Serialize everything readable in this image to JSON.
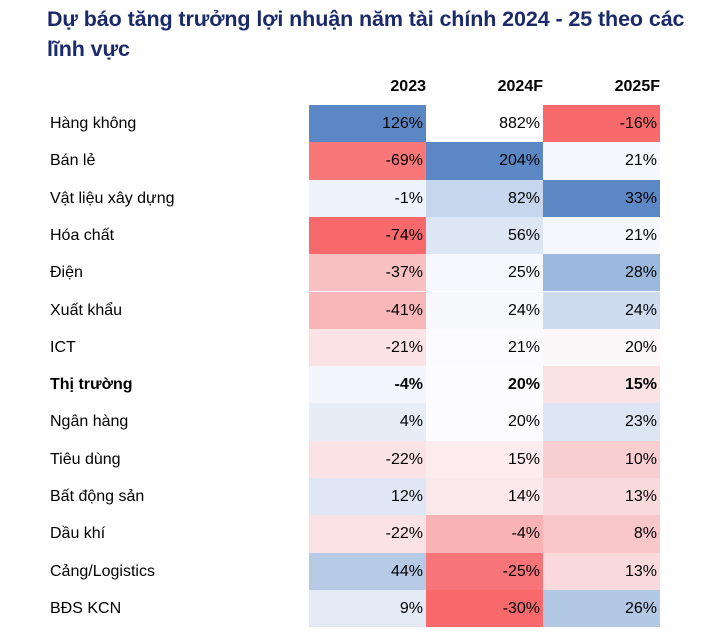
{
  "title": "Dự báo tăng trưởng lợi nhuận năm tài chính 2024 - 25 theo các lĩnh vực",
  "columns": [
    "2023",
    "2024F",
    "2025F"
  ],
  "rows": [
    {
      "label": "Hàng không",
      "values": [
        "126%",
        "882%",
        "-16%"
      ],
      "colors": [
        "#5b88c4",
        "#ffffff",
        "#f8696b"
      ]
    },
    {
      "label": "Bán lẻ",
      "values": [
        "-69%",
        "204%",
        "21%"
      ],
      "colors": [
        "#f97679",
        "#5b88c4",
        "#f5f7fc"
      ]
    },
    {
      "label": "Vật liệu xây dựng",
      "values": [
        "-1%",
        "82%",
        "33%"
      ],
      "colors": [
        "#eef2fa",
        "#c6d6ec",
        "#5b88c4"
      ]
    },
    {
      "label": "Hóa chất",
      "values": [
        "-74%",
        "56%",
        "21%"
      ],
      "colors": [
        "#f8696b",
        "#dde6f4",
        "#f5f7fc"
      ]
    },
    {
      "label": "Điện",
      "values": [
        "-37%",
        "25%",
        "28%"
      ],
      "colors": [
        "#f9c0c2",
        "#f7f8fd",
        "#9bb8de"
      ]
    },
    {
      "label": "Xuất khẩu",
      "values": [
        "-41%",
        "24%",
        "24%"
      ],
      "colors": [
        "#f9b6b8",
        "#f8f9fd",
        "#cedcef"
      ]
    },
    {
      "label": "ICT",
      "values": [
        "-21%",
        "21%",
        "20%"
      ],
      "colors": [
        "#fbe3e5",
        "#fbfbfe",
        "#fcf8fa"
      ]
    },
    {
      "label": "Thị trường",
      "values": [
        "-4%",
        "20%",
        "15%"
      ],
      "colors": [
        "#f2f5fc",
        "#fcfcff",
        "#fbe2e4"
      ],
      "bold": true
    },
    {
      "label": "Ngân hàng",
      "values": [
        "4%",
        "20%",
        "23%"
      ],
      "colors": [
        "#e7edf7",
        "#fcfcff",
        "#dce5f4"
      ]
    },
    {
      "label": "Tiêu dùng",
      "values": [
        "-22%",
        "15%",
        "10%"
      ],
      "colors": [
        "#fbe3e5",
        "#fcecee",
        "#f9ced1"
      ]
    },
    {
      "label": "Bất động sản",
      "values": [
        "12%",
        "14%",
        "13%"
      ],
      "colors": [
        "#dfe7f4",
        "#fbe8ea",
        "#fad9dc"
      ]
    },
    {
      "label": "Dầu khí",
      "values": [
        "-22%",
        "-4%",
        "8%"
      ],
      "colors": [
        "#fbe3e5",
        "#f9b3b5",
        "#f9c7c9"
      ]
    },
    {
      "label": "Cảng/Logistics",
      "values": [
        "44%",
        "-25%",
        "13%"
      ],
      "colors": [
        "#b6cae6",
        "#f77578",
        "#fad9dc"
      ]
    },
    {
      "label": "BĐS KCN",
      "values": [
        "9%",
        "-30%",
        "26%"
      ],
      "colors": [
        "#e3e9f5",
        "#f8696b",
        "#b3c8e5"
      ]
    }
  ],
  "chart_data": {
    "type": "heatmap",
    "title": "Dự báo tăng trưởng lợi nhuận năm tài chính 2024 - 25 theo các lĩnh vực",
    "x": [
      "2023",
      "2024F",
      "2025F"
    ],
    "y": [
      "Hàng không",
      "Bán lẻ",
      "Vật liệu xây dựng",
      "Hóa chất",
      "Điện",
      "Xuất khẩu",
      "ICT",
      "Thị trường",
      "Ngân hàng",
      "Tiêu dùng",
      "Bất động sản",
      "Dầu khí",
      "Cảng/Logistics",
      "BĐS KCN"
    ],
    "values": [
      [
        126,
        882,
        -16
      ],
      [
        -69,
        204,
        21
      ],
      [
        -1,
        82,
        33
      ],
      [
        -74,
        56,
        21
      ],
      [
        -37,
        25,
        28
      ],
      [
        -41,
        24,
        24
      ],
      [
        -21,
        21,
        20
      ],
      [
        -4,
        20,
        15
      ],
      [
        4,
        20,
        23
      ],
      [
        -22,
        15,
        10
      ],
      [
        12,
        14,
        13
      ],
      [
        -22,
        -4,
        8
      ],
      [
        44,
        -25,
        13
      ],
      [
        9,
        -30,
        26
      ]
    ],
    "unit": "%",
    "color_scale": {
      "low": "#f8696b",
      "mid": "#ffffff",
      "high": "#5b88c4"
    },
    "highlight_row": "Thị trường"
  }
}
